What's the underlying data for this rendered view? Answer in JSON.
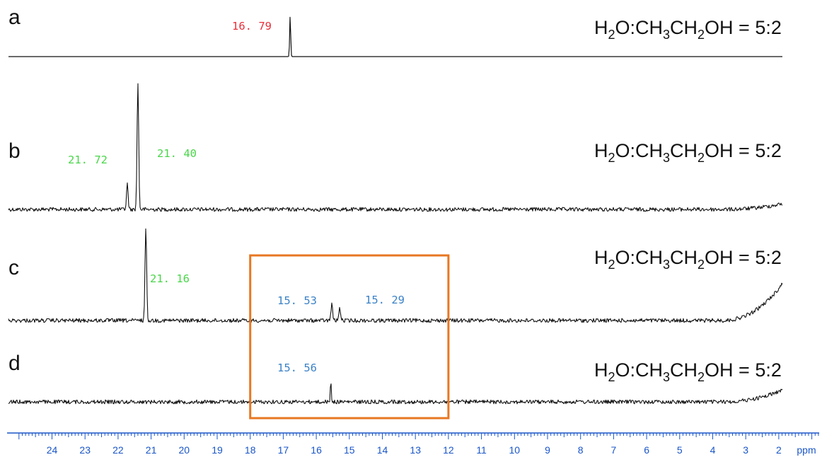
{
  "chart_data": {
    "type": "line",
    "description": "",
    "x_axis": {
      "label": "ppm",
      "range": [
        25.0,
        0.3
      ],
      "reversed": true,
      "ticks": [
        24,
        23,
        22,
        21,
        20,
        19,
        18,
        17,
        16,
        15,
        14,
        13,
        12,
        11,
        10,
        9,
        8,
        7,
        6,
        5,
        4,
        3,
        2
      ]
    },
    "panels": [
      {
        "id": "a",
        "condition": {
          "prefix": "H",
          "sub1": "2",
          "mid1": "O:CH",
          "sub2": "3",
          "mid2": "CH",
          "sub3": "2",
          "suffix": "OH = 5:2"
        },
        "peaks": [
          {
            "ppm": 16.79,
            "label": "16. 79",
            "height": 1.0,
            "color": "#e8303a"
          }
        ],
        "noise": 0.0,
        "baseline_rise": 0.0
      },
      {
        "id": "b",
        "condition": {
          "prefix": "H",
          "sub1": "2",
          "mid1": "O:CH",
          "sub2": "3",
          "mid2": "CH",
          "sub3": "2",
          "suffix": "OH = 5:2"
        },
        "peaks": [
          {
            "ppm": 21.72,
            "label": "21. 72",
            "height": 0.2,
            "color": "#4ad64a"
          },
          {
            "ppm": 21.4,
            "label": "21. 40",
            "height": 1.0,
            "color": "#4ad64a"
          }
        ],
        "noise": 1.0,
        "baseline_rise": 0.15
      },
      {
        "id": "c",
        "condition": {
          "prefix": "H",
          "sub1": "2",
          "mid1": "O:CH",
          "sub2": "3",
          "mid2": "CH",
          "sub3": "2",
          "suffix": "OH = 5:2"
        },
        "peaks": [
          {
            "ppm": 21.16,
            "label": "21. 16",
            "height": 1.0,
            "color": "#4ad64a"
          },
          {
            "ppm": 15.53,
            "label": "15. 53",
            "height": 0.18,
            "color": "#3b82c8"
          },
          {
            "ppm": 15.29,
            "label": "15. 29",
            "height": 0.14,
            "color": "#3b82c8"
          }
        ],
        "noise": 1.0,
        "baseline_rise": 1.0
      },
      {
        "id": "d",
        "condition": {
          "prefix": "H",
          "sub1": "2",
          "mid1": "O:CH",
          "sub2": "3",
          "mid2": "CH",
          "sub3": "2",
          "suffix": "OH = 5:2"
        },
        "peaks": [
          {
            "ppm": 15.56,
            "label": "15. 56",
            "height": 1.0,
            "color": "#3b82c8"
          }
        ],
        "noise": 1.0,
        "baseline_rise": 0.35
      }
    ],
    "highlight_box": {
      "ppm_from": 18.0,
      "ppm_to": 12.0,
      "color": "#e87722"
    },
    "colors": {
      "trace": "#111111",
      "axis": "#1a56c8"
    }
  }
}
